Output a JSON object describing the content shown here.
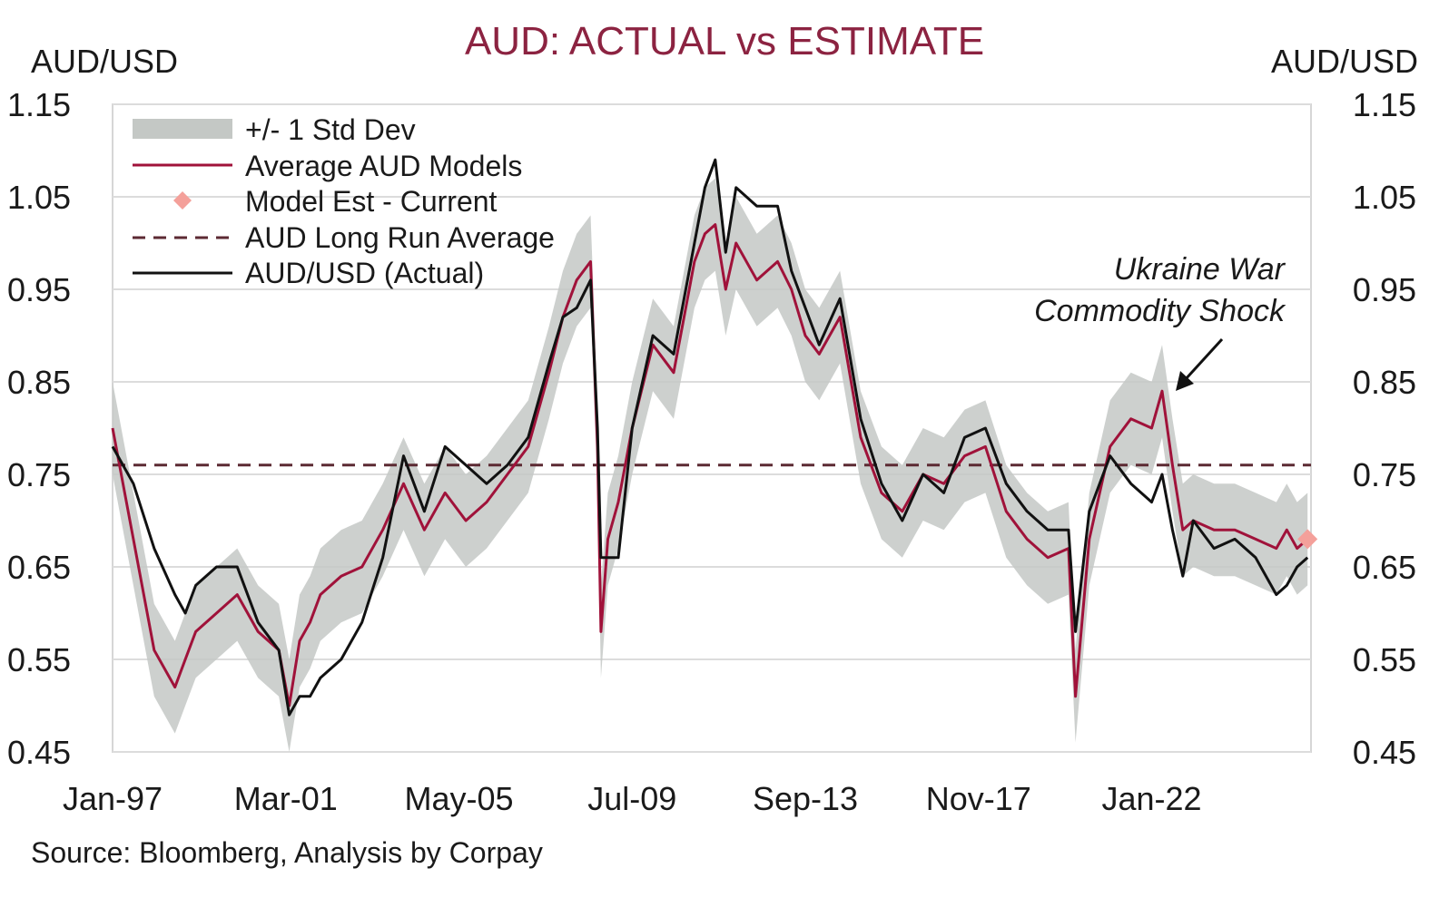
{
  "chart_data": {
    "type": "line",
    "title": "AUD: ACTUAL vs ESTIMATE",
    "ylabel_left": "AUD/USD",
    "ylabel_right": "AUD/USD",
    "ylim": [
      0.45,
      1.15
    ],
    "yticks": [
      "1.15",
      "1.05",
      "0.95",
      "0.85",
      "0.75",
      "0.65",
      "0.55",
      "0.45"
    ],
    "xlim": [
      "1997-01",
      "2025-11"
    ],
    "xticks": [
      {
        "label": "Jan-97",
        "date": "1997-01"
      },
      {
        "label": "Mar-01",
        "date": "2001-03"
      },
      {
        "label": "May-05",
        "date": "2005-05"
      },
      {
        "label": "Jul-09",
        "date": "2009-07"
      },
      {
        "label": "Sep-13",
        "date": "2013-09"
      },
      {
        "label": "Nov-17",
        "date": "2017-11"
      },
      {
        "label": "Jan-22",
        "date": "2022-01"
      }
    ],
    "grid": true,
    "legend_position": "top-left",
    "legend": [
      {
        "key": "band",
        "label": "+/- 1 Std Dev"
      },
      {
        "key": "model",
        "label": "Average AUD Models"
      },
      {
        "key": "current",
        "label": "Model Est - Current"
      },
      {
        "key": "lra",
        "label": "AUD Long Run Average"
      },
      {
        "key": "actual",
        "label": "AUD/USD (Actual)"
      }
    ],
    "colors": {
      "actual": "#111111",
      "model": "#a0123a",
      "band": "#c4c8c5",
      "current": "#f4a09a",
      "lra": "#5c2a33",
      "grid": "#dcdcdc",
      "title": "#8c2341"
    },
    "long_run_average": 0.76,
    "current_estimate": {
      "date": "2025-10",
      "value": 0.68
    },
    "band_width": 0.05,
    "dates": [
      "1997-01",
      "1997-07",
      "1998-01",
      "1998-07",
      "1998-10",
      "1999-01",
      "1999-07",
      "2000-01",
      "2000-07",
      "2001-01",
      "2001-04",
      "2001-07",
      "2001-10",
      "2002-01",
      "2002-07",
      "2003-01",
      "2003-07",
      "2004-01",
      "2004-07",
      "2005-01",
      "2005-07",
      "2006-01",
      "2006-07",
      "2007-01",
      "2007-07",
      "2007-11",
      "2008-03",
      "2008-07",
      "2008-09",
      "2008-10",
      "2008-12",
      "2009-03",
      "2009-07",
      "2010-01",
      "2010-07",
      "2011-01",
      "2011-04",
      "2011-07",
      "2011-10",
      "2012-01",
      "2012-07",
      "2013-01",
      "2013-05",
      "2013-09",
      "2014-01",
      "2014-07",
      "2015-01",
      "2015-07",
      "2016-01",
      "2016-07",
      "2017-01",
      "2017-07",
      "2018-01",
      "2018-07",
      "2019-01",
      "2019-07",
      "2020-01",
      "2020-03",
      "2020-07",
      "2021-01",
      "2021-07",
      "2022-01",
      "2022-04",
      "2022-07",
      "2022-10",
      "2023-01",
      "2023-07",
      "2024-01",
      "2024-07",
      "2025-01",
      "2025-04",
      "2025-07",
      "2025-10"
    ],
    "series": [
      {
        "name": "AUD/USD (Actual)",
        "key": "actual",
        "values": [
          0.78,
          0.74,
          0.67,
          0.62,
          0.6,
          0.63,
          0.65,
          0.65,
          0.59,
          0.56,
          0.49,
          0.51,
          0.51,
          0.53,
          0.55,
          0.59,
          0.66,
          0.77,
          0.71,
          0.78,
          0.76,
          0.74,
          0.76,
          0.79,
          0.87,
          0.92,
          0.93,
          0.96,
          0.8,
          0.66,
          0.66,
          0.66,
          0.8,
          0.9,
          0.88,
          1.0,
          1.06,
          1.09,
          0.99,
          1.06,
          1.04,
          1.04,
          0.97,
          0.93,
          0.89,
          0.94,
          0.81,
          0.74,
          0.7,
          0.75,
          0.73,
          0.79,
          0.8,
          0.74,
          0.71,
          0.69,
          0.69,
          0.58,
          0.71,
          0.77,
          0.74,
          0.72,
          0.75,
          0.69,
          0.64,
          0.7,
          0.67,
          0.68,
          0.66,
          0.62,
          0.63,
          0.65,
          0.66
        ]
      },
      {
        "name": "Average AUD Models",
        "key": "model",
        "values": [
          0.8,
          0.68,
          0.56,
          0.52,
          0.55,
          0.58,
          0.6,
          0.62,
          0.58,
          0.56,
          0.5,
          0.57,
          0.59,
          0.62,
          0.64,
          0.65,
          0.69,
          0.74,
          0.69,
          0.73,
          0.7,
          0.72,
          0.75,
          0.78,
          0.86,
          0.92,
          0.96,
          0.98,
          0.78,
          0.58,
          0.68,
          0.72,
          0.8,
          0.89,
          0.86,
          0.98,
          1.01,
          1.02,
          0.95,
          1.0,
          0.96,
          0.98,
          0.95,
          0.9,
          0.88,
          0.92,
          0.79,
          0.73,
          0.71,
          0.75,
          0.74,
          0.77,
          0.78,
          0.71,
          0.68,
          0.66,
          0.67,
          0.51,
          0.68,
          0.78,
          0.81,
          0.8,
          0.84,
          0.76,
          0.69,
          0.7,
          0.69,
          0.69,
          0.68,
          0.67,
          0.69,
          0.67,
          0.68
        ]
      }
    ],
    "annotation": {
      "lines": [
        "Ukraine War",
        "Commodity Shock"
      ],
      "points_to": {
        "date": "2022-05",
        "value": 0.84
      }
    },
    "source": "Source: Bloomberg, Analysis by Corpay"
  }
}
